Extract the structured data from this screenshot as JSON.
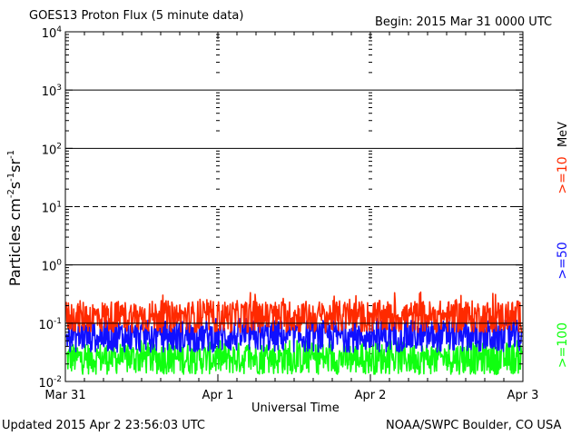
{
  "header": {
    "title": "GOES13 Proton Flux (5 minute data)",
    "begin": "Begin: 2015 Mar 31 0000 UTC"
  },
  "footer": {
    "updated": "Updated 2015 Apr  2 23:56:03 UTC",
    "credit": "NOAA/SWPC Boulder, CO USA"
  },
  "colors": {
    "ge10": "#ff2a00",
    "ge50": "#1010ff",
    "ge100": "#10ff10",
    "axis": "#000000"
  },
  "chart_data": {
    "type": "line",
    "title": "GOES13 Proton Flux (5 minute data)",
    "xlabel": "Universal Time",
    "ylabel": "Particles cm-2s-1sr-1",
    "unit_label": "MeV",
    "yscale": "log",
    "ylim": [
      0.01,
      10000
    ],
    "xlim": [
      "2015-03-31",
      "2015-04-03"
    ],
    "x_ticks": [
      "Mar 31",
      "Apr 1",
      "Apr 2",
      "Apr 3"
    ],
    "y_ticks": [
      {
        "base": "10",
        "exp": "-2"
      },
      {
        "base": "10",
        "exp": "-1"
      },
      {
        "base": "10",
        "exp": "0"
      },
      {
        "base": "10",
        "exp": "1"
      },
      {
        "base": "10",
        "exp": "2"
      },
      {
        "base": "10",
        "exp": "3"
      },
      {
        "base": "10",
        "exp": "4"
      }
    ],
    "grid": true,
    "series": [
      {
        "name": ">=10",
        "color": "#ff2a00",
        "typical": 0.13,
        "min": 0.07,
        "max": 0.35
      },
      {
        "name": ">=50",
        "color": "#1010ff",
        "typical": 0.06,
        "min": 0.03,
        "max": 0.12
      },
      {
        "name": ">=100",
        "color": "#10ff10",
        "typical": 0.025,
        "min": 0.013,
        "max": 0.05
      }
    ]
  }
}
